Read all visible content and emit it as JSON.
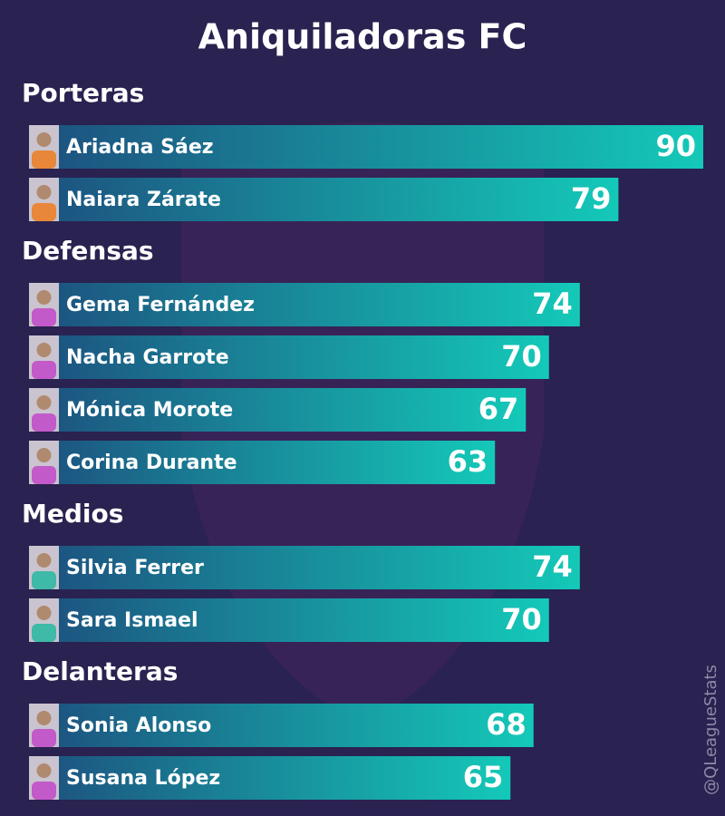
{
  "chart_data": {
    "type": "grouped-hbar",
    "title": "Aniquiladoras FC",
    "credit": "@QLeagueStats",
    "bar_colors": [
      "#1d4f7e",
      "#14c9b8"
    ],
    "groups": [
      {
        "name": "Porteras",
        "categories": [
          "Ariadna Sáez",
          "Naiara Zárate"
        ],
        "values": [
          90,
          79
        ],
        "jersey_color": "#e8873a"
      },
      {
        "name": "Defensas",
        "categories": [
          "Gema Fernández",
          "Nacha Garrote",
          "Mónica Morote",
          "Corina Durante"
        ],
        "values": [
          74,
          70,
          67,
          63
        ],
        "jersey_color": "#c35ac9"
      },
      {
        "name": "Medios",
        "categories": [
          "Silvia Ferrer",
          "Sara Ismael"
        ],
        "values": [
          74,
          70
        ],
        "jersey_color": "#3fb9a8"
      },
      {
        "name": "Delanteras",
        "categories": [
          "Sonia Alonso",
          "Susana López"
        ],
        "values": [
          68,
          65
        ],
        "jersey_color": "#c35ac9"
      }
    ]
  }
}
